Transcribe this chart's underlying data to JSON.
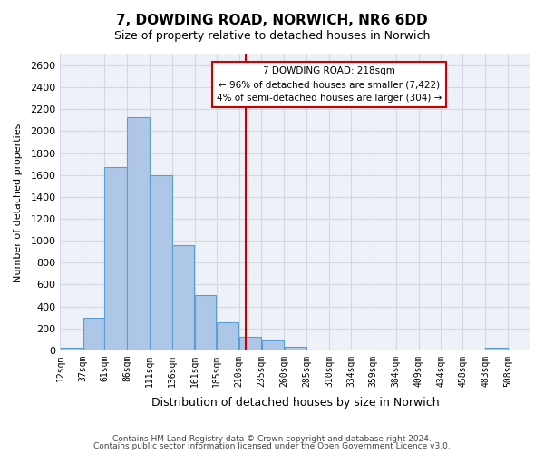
{
  "title": "7, DOWDING ROAD, NORWICH, NR6 6DD",
  "subtitle": "Size of property relative to detached houses in Norwich",
  "xlabel": "Distribution of detached houses by size in Norwich",
  "ylabel": "Number of detached properties",
  "bar_left_edges": [
    12,
    37,
    61,
    86,
    111,
    136,
    161,
    185,
    210,
    235,
    260,
    285,
    310,
    334,
    359,
    384,
    409,
    434,
    458,
    483
  ],
  "bar_widths": [
    25,
    24,
    25,
    25,
    25,
    25,
    24,
    25,
    25,
    25,
    25,
    25,
    24,
    25,
    25,
    25,
    25,
    24,
    25,
    25
  ],
  "bar_heights": [
    20,
    300,
    1670,
    2130,
    1600,
    960,
    505,
    255,
    125,
    95,
    30,
    10,
    5,
    0,
    5,
    0,
    0,
    0,
    0,
    20
  ],
  "bar_color": "#aec6e8",
  "bar_edge_color": "#5a9fd4",
  "grid_color": "#d0d8e4",
  "bg_color": "#eef2f8",
  "vline_x": 218,
  "vline_color": "#cc0000",
  "ylim": [
    0,
    2700
  ],
  "yticks": [
    0,
    200,
    400,
    600,
    800,
    1000,
    1200,
    1400,
    1600,
    1800,
    2000,
    2200,
    2400,
    2600
  ],
  "xtick_labels": [
    "12sqm",
    "37sqm",
    "61sqm",
    "86sqm",
    "111sqm",
    "136sqm",
    "161sqm",
    "185sqm",
    "210sqm",
    "235sqm",
    "260sqm",
    "285sqm",
    "310sqm",
    "334sqm",
    "359sqm",
    "384sqm",
    "409sqm",
    "434sqm",
    "458sqm",
    "483sqm",
    "508sqm"
  ],
  "annotation_title": "7 DOWDING ROAD: 218sqm",
  "annotation_line1": "← 96% of detached houses are smaller (7,422)",
  "annotation_line2": "4% of semi-detached houses are larger (304) →",
  "annotation_box_color": "#ffffff",
  "annotation_box_edge_color": "#cc0000",
  "footnote1": "Contains HM Land Registry data © Crown copyright and database right 2024.",
  "footnote2": "Contains public sector information licensed under the Open Government Licence v3.0."
}
